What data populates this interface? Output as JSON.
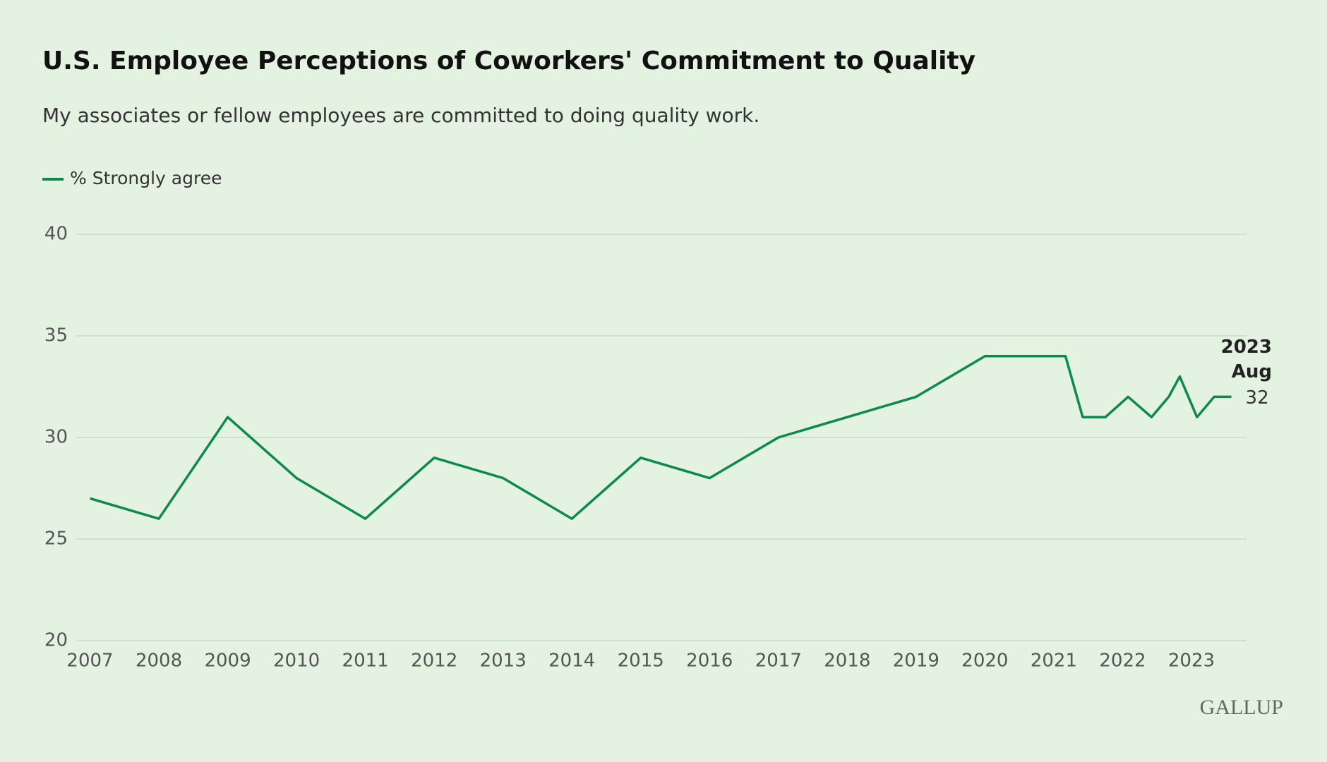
{
  "chart_data": {
    "type": "line",
    "title": "U.S. Employee Perceptions of Coworkers' Commitment to Quality",
    "subtitle": "My associates or fellow employees are committed to doing quality work.",
    "x": [
      2007,
      2008,
      2009,
      2010,
      2011,
      2012,
      2013,
      2014,
      2015,
      2016,
      2017,
      2019,
      2020,
      2021.17,
      2021.42,
      2021.75,
      2022.08,
      2022.42,
      2022.67,
      2022.83,
      2023.08,
      2023.33,
      2023.58
    ],
    "series": [
      {
        "name": "% Strongly agree",
        "color": "#0c8a4c",
        "values": [
          27,
          26,
          31,
          28,
          26,
          29,
          28,
          26,
          29,
          28,
          30,
          32,
          34,
          34,
          31,
          31,
          32,
          31,
          32,
          33,
          31,
          32,
          32
        ]
      }
    ],
    "xlim": [
      2006.8,
      2023.8
    ],
    "xticks": [
      2007,
      2008,
      2009,
      2010,
      2011,
      2012,
      2013,
      2014,
      2015,
      2016,
      2017,
      2018,
      2019,
      2020,
      2021,
      2022,
      2023
    ],
    "ylim": [
      20,
      40
    ],
    "yticks": [
      20,
      25,
      30,
      35,
      40
    ],
    "grid": true,
    "annotation": [
      "2023",
      "Aug"
    ],
    "source": "GALLUP"
  }
}
